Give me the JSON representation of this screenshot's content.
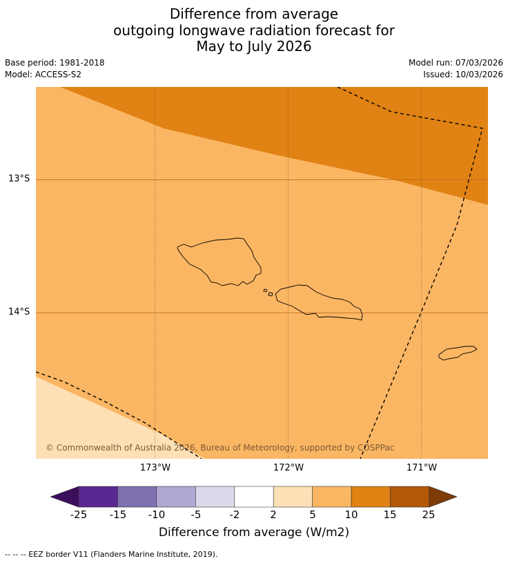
{
  "title": {
    "line1": "Difference from average",
    "line2": "outgoing longwave radiation forecast for",
    "line3": "May to July 2026"
  },
  "meta": {
    "base_period": "Base period: 1981-2018",
    "model": "Model: ACCESS-S2",
    "model_run": "Model run: 07/03/2026",
    "issued": "Issued: 10/03/2026"
  },
  "map": {
    "lat_labels": [
      "13°S",
      "14°S"
    ],
    "lon_labels": [
      "173°W",
      "172°W",
      "171°W"
    ],
    "copyright": "© Commonwealth of Australia 2026, Bureau of Meteorology, supported by COSPPac"
  },
  "colorbar": {
    "ticks": [
      "-25",
      "-15",
      "-10",
      "-5",
      "-2",
      "2",
      "5",
      "10",
      "15",
      "25"
    ],
    "colors": [
      "#3b0f5c",
      "#5a2891",
      "#8070b0",
      "#b0a8d2",
      "#dadaea",
      "#ffffff",
      "#fee0b6",
      "#fbb663",
      "#e08214",
      "#b35806",
      "#7f3b08"
    ],
    "label": "Difference from average (W/m2)"
  },
  "footnote": "--  --  -- EEZ border V11 (Flanders Marine Institute, 2019)."
}
